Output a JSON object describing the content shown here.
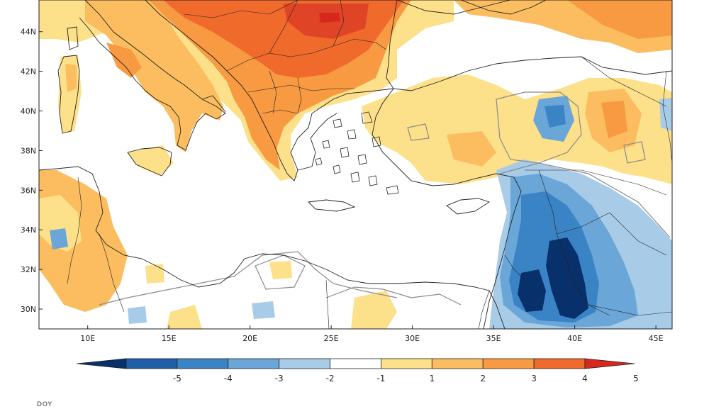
{
  "map": {
    "lat_labels": [
      "44N",
      "42N",
      "40N",
      "38N",
      "36N",
      "34N",
      "32N",
      "30N"
    ],
    "lon_labels": [
      "10E",
      "15E",
      "20E",
      "25E",
      "30E",
      "35E",
      "40E",
      "45E"
    ],
    "extent": {
      "lon_min": 7,
      "lon_max": 46,
      "lat_min": 29,
      "lat_max": 45.6
    }
  },
  "colorbar": {
    "labels": [
      "-5",
      "-4",
      "-3",
      "-2",
      "-1",
      "1",
      "2",
      "3",
      "4",
      "5"
    ],
    "colors": [
      "#08306b",
      "#1f5fa8",
      "#3a84c6",
      "#6aa6d8",
      "#a8cbe8",
      "#ffffff",
      "#fde08a",
      "#fbbd5f",
      "#f79a42",
      "#f06a2c",
      "#d8281e"
    ]
  },
  "palette": {
    "warm_light": "#fde08a",
    "warm_mid": "#fbbd5f",
    "warm_orange": "#f79a42",
    "warm_red": "#f06a2c",
    "warm_deep": "#e04426",
    "cool_light": "#a8cbe8",
    "cool_mid": "#6aa6d8",
    "cool_blue": "#3a84c6",
    "cool_deep": "#08306b"
  },
  "footer": {
    "text": "DOY"
  }
}
